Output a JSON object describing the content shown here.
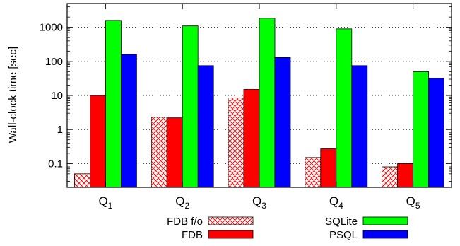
{
  "chart_data": {
    "type": "bar",
    "ylabel": "Wall-clock time [sec]",
    "yscale": "log",
    "ylim": [
      0.02,
      5000
    ],
    "yticks": [
      0.1,
      1,
      10,
      100,
      1000
    ],
    "ytick_labels": [
      "0.1",
      "1",
      "10",
      "100",
      "1000"
    ],
    "grid": "horizontal dotted",
    "legend_position": "bottom",
    "categories": [
      {
        "base": "Q",
        "sub": "1"
      },
      {
        "base": "Q",
        "sub": "2"
      },
      {
        "base": "Q",
        "sub": "3"
      },
      {
        "base": "Q",
        "sub": "4"
      },
      {
        "base": "Q",
        "sub": "5"
      }
    ],
    "series": [
      {
        "name": "FDB f/o",
        "color": "#ff0000",
        "pattern": "crosshatch",
        "values": [
          0.05,
          2.3,
          8.5,
          0.15,
          0.08
        ]
      },
      {
        "name": "FDB",
        "color": "#ff0000",
        "pattern": "solid",
        "values": [
          10,
          2.2,
          15,
          0.27,
          0.1
        ]
      },
      {
        "name": "SQLite",
        "color": "#00ff00",
        "pattern": "solid",
        "values": [
          1600,
          1100,
          1850,
          900,
          50
        ]
      },
      {
        "name": "PSQL",
        "color": "#0000ff",
        "pattern": "solid",
        "values": [
          160,
          75,
          130,
          75,
          32
        ]
      }
    ]
  }
}
